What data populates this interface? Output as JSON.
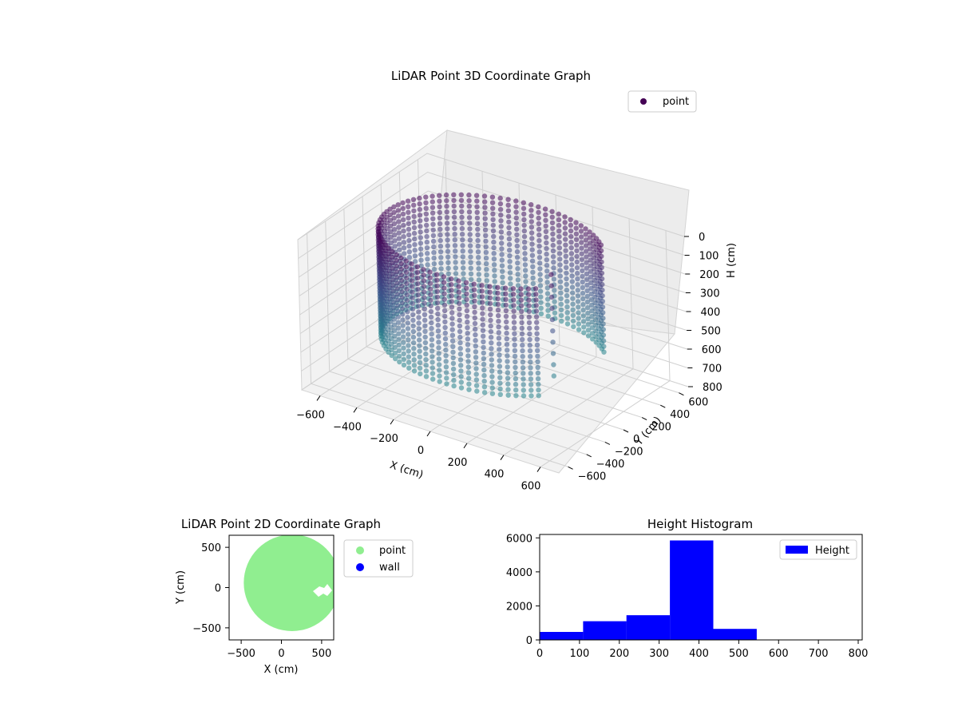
{
  "chart_data": [
    {
      "type": "scatter",
      "subtype": "3d",
      "title": "LiDAR Point 3D Coordinate Graph",
      "xlabel": "X (cm)",
      "ylabel": "Y (cm)",
      "zlabel": "H (cm)",
      "xlim": [
        -700,
        700
      ],
      "ylim": [
        -700,
        700
      ],
      "zlim": [
        0,
        800
      ],
      "z_inverted": true,
      "x_ticks": [
        "−600",
        "−400",
        "−200",
        "0",
        "200",
        "400",
        "600"
      ],
      "y_ticks": [
        "−600",
        "−400",
        "−200",
        "0",
        "200",
        "400",
        "600"
      ],
      "z_ticks": [
        "0",
        "100",
        "200",
        "300",
        "400",
        "500",
        "600",
        "700",
        "800"
      ],
      "grid": true,
      "legend": [
        "point"
      ],
      "legend_position": "top-right",
      "colormap": "viridis",
      "description_values": {
        "shape": "cylindrical wall of radius about 550 cm, heights 0 to 600 cm, with an inward notch toward +X",
        "wall_radius": 550,
        "height_range": [
          0,
          600
        ]
      }
    },
    {
      "type": "scatter",
      "title": "LiDAR Point 2D Coordinate Graph",
      "xlabel": "X (cm)",
      "ylabel": "Y (cm)",
      "xlim": [
        -650,
        650
      ],
      "ylim": [
        -650,
        650
      ],
      "x_ticks": [
        "−500",
        "0",
        "500"
      ],
      "y_ticks": [
        "−500",
        "0",
        "500"
      ],
      "series": [
        {
          "name": "point",
          "color": "#90ee90",
          "shape": "filled disk radius about 600 cm centered at (0,0), clipped by axes"
        },
        {
          "name": "wall",
          "color": "#0000ff",
          "values": []
        }
      ],
      "legend_position": "outside-right"
    },
    {
      "type": "bar",
      "subtype": "histogram",
      "title": "Height Histogram",
      "bins": [
        {
          "x0": 0,
          "x1": 109,
          "value": 470
        },
        {
          "x0": 109,
          "x1": 218,
          "value": 1100
        },
        {
          "x0": 218,
          "x1": 327,
          "value": 1450
        },
        {
          "x0": 327,
          "x1": 436,
          "value": 5850
        },
        {
          "x0": 436,
          "x1": 545,
          "value": 650
        },
        {
          "x0": 545,
          "x1": 800,
          "value": 0
        }
      ],
      "xlim": [
        0,
        810
      ],
      "ylim": [
        0,
        6200
      ],
      "x_ticks": [
        0,
        100,
        200,
        300,
        400,
        500,
        600,
        700,
        800
      ],
      "y_ticks": [
        0,
        2000,
        4000,
        6000
      ],
      "series": [
        {
          "name": "Height",
          "color": "#0000ff"
        }
      ],
      "legend_position": "top-right"
    }
  ]
}
